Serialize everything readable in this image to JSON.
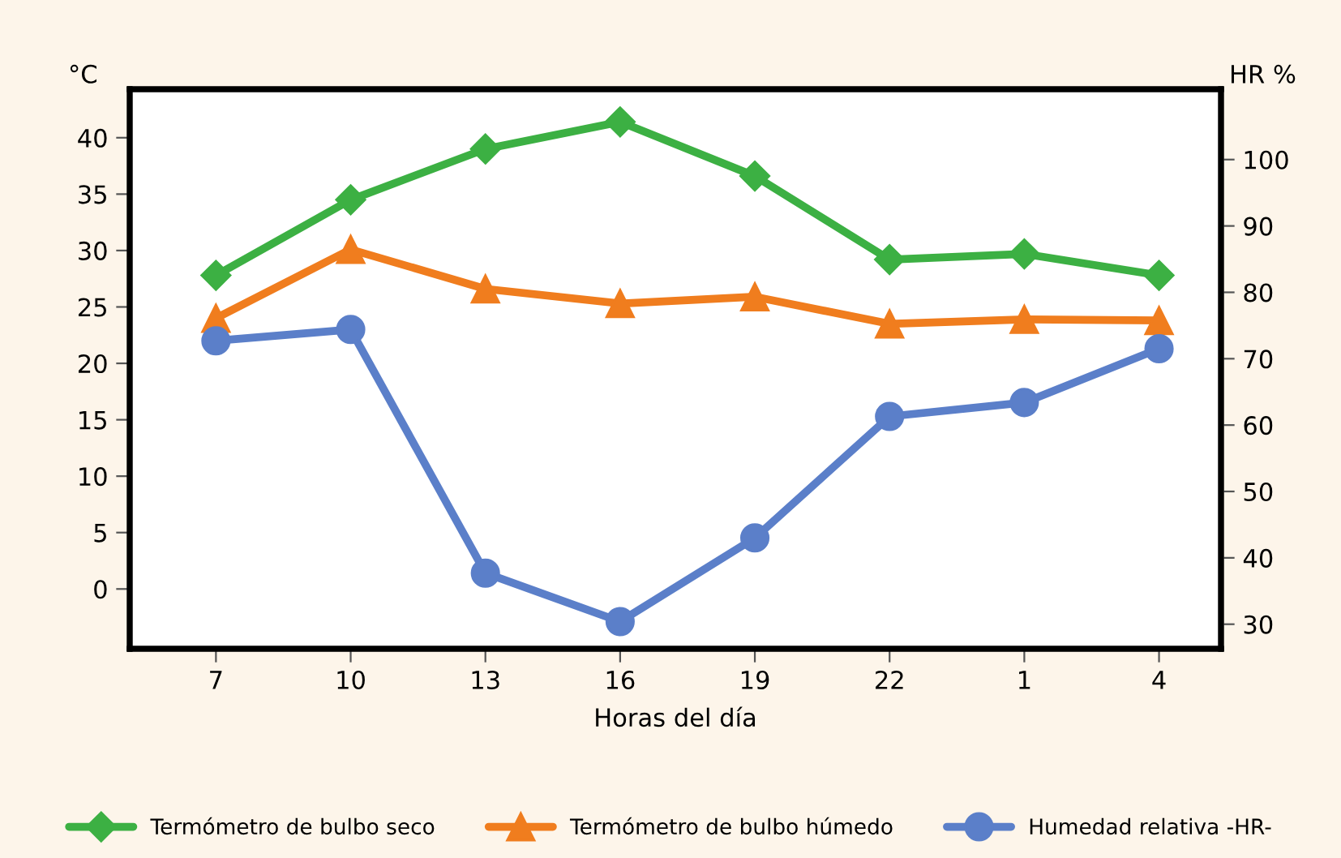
{
  "chart_data": {
    "type": "line",
    "categories": [
      "7",
      "10",
      "13",
      "16",
      "19",
      "22",
      "1",
      "4"
    ],
    "xlabel": "Horas del día",
    "ylabel": "°C",
    "y2label": "HR %",
    "series": [
      {
        "name": "Termómetro de bulbo seco",
        "color": "#3cb043",
        "marker": "diamond",
        "values": [
          27.8,
          34.5,
          39.0,
          41.4,
          36.6,
          29.2,
          29.7,
          27.8
        ]
      },
      {
        "name": "Termómetro de bulbo húmedo",
        "color": "#f07d1e",
        "marker": "triangle",
        "values": [
          24.0,
          30.1,
          26.6,
          25.3,
          25.9,
          23.5,
          23.9,
          23.8
        ]
      },
      {
        "name": "Humedad relativa -HR-",
        "color": "#5b7fc9",
        "marker": "circle",
        "axis": "y2",
        "values": [
          72.7,
          74.4,
          37.7,
          30.4,
          43.0,
          61.3,
          63.4,
          71.5
        ]
      }
    ],
    "ylim": [
      -5.3,
      44.3
    ],
    "yticks": [
      0,
      5,
      10,
      15,
      20,
      25,
      30,
      35,
      40
    ],
    "y2lim": [
      26.3,
      110.6
    ],
    "y2ticks": [
      30,
      40,
      50,
      60,
      70,
      80,
      90,
      100
    ],
    "grid": false,
    "legend": "bottom",
    "line_style": "solid"
  }
}
